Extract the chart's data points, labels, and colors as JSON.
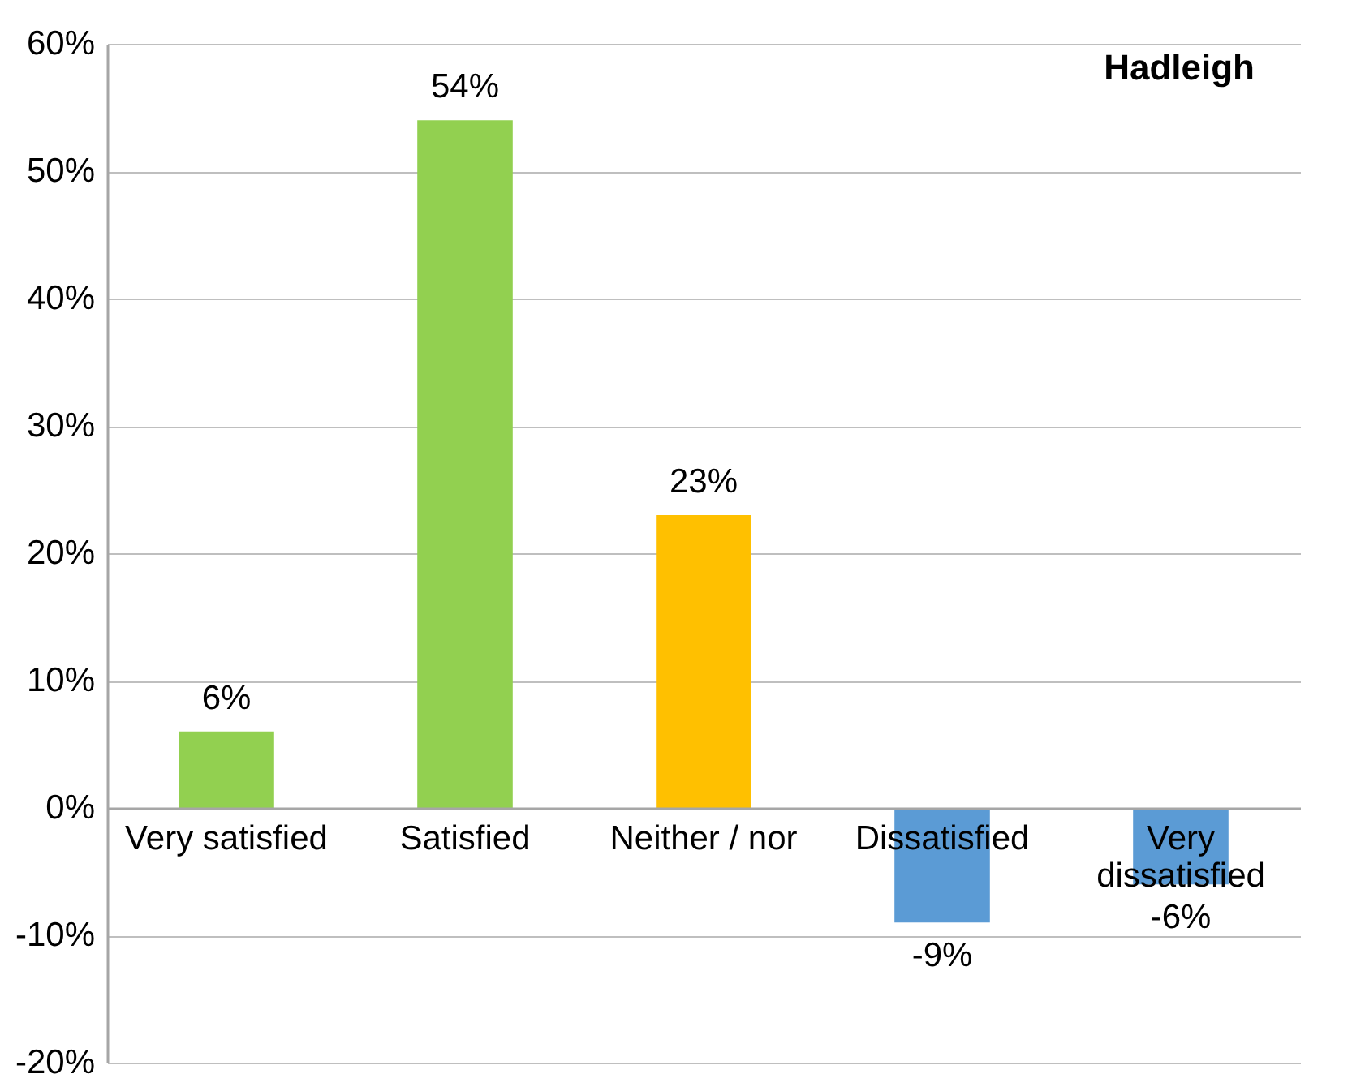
{
  "chart_data": {
    "type": "bar",
    "title": "Hadleigh",
    "categories": [
      "Very satisfied",
      "Satisfied",
      "Neither / nor",
      "Dissatisfied",
      "Very dissatisfied"
    ],
    "values": [
      6,
      54,
      23,
      -9,
      -6
    ],
    "colors": [
      "#92d050",
      "#92d050",
      "#ffc000",
      "#5b9bd5",
      "#5b9bd5"
    ],
    "value_labels": [
      "6%",
      "54%",
      "23%",
      "-9%",
      "-6%"
    ],
    "ylim": [
      -20,
      60
    ],
    "yticks": [
      {
        "value": -20,
        "label": "-20%"
      },
      {
        "value": -10,
        "label": "-10%"
      },
      {
        "value": 0,
        "label": "0%"
      },
      {
        "value": 10,
        "label": "10%"
      },
      {
        "value": 20,
        "label": "20%"
      },
      {
        "value": 30,
        "label": "30%"
      },
      {
        "value": 40,
        "label": "40%"
      },
      {
        "value": 50,
        "label": "50%"
      },
      {
        "value": 60,
        "label": "60%"
      }
    ],
    "grid": "y",
    "legend": false
  }
}
